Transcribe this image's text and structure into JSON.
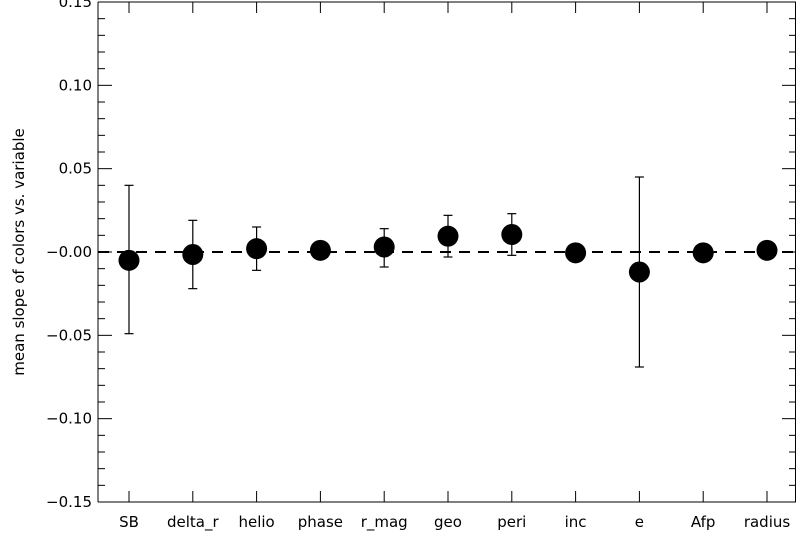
{
  "chart_data": {
    "type": "scatter",
    "title": "",
    "xlabel": "",
    "ylabel": "mean slope of colors vs. variable",
    "categories": [
      "SB",
      "delta_r",
      "helio",
      "phase",
      "r_mag",
      "geo",
      "peri",
      "inc",
      "e",
      "Afp",
      "radius"
    ],
    "ylim": [
      -0.15,
      0.15
    ],
    "yticks": [
      -0.15,
      -0.1,
      -0.05,
      0.0,
      0.05,
      0.1,
      0.15
    ],
    "ytick_labels": [
      "−0.15",
      "−0.10",
      "−0.05",
      "−0.00",
      "0.05",
      "0.10",
      "0.15"
    ],
    "series": [
      {
        "values": [
          -0.005,
          -0.0015,
          0.002,
          0.001,
          0.003,
          0.0095,
          0.0105,
          -0.0005,
          -0.012,
          -0.0005,
          0.001
        ],
        "err_high": [
          0.04,
          0.019,
          0.015,
          null,
          0.014,
          0.022,
          0.023,
          null,
          0.045,
          null,
          null
        ],
        "err_low": [
          -0.049,
          -0.022,
          -0.011,
          null,
          -0.009,
          -0.003,
          -0.002,
          null,
          -0.069,
          null,
          null
        ]
      }
    ],
    "reference_line": {
      "y": 0.0,
      "style": "dashed"
    },
    "grid": false,
    "colors": {
      "marker": "#000000",
      "axis": "#000000",
      "background": "#ffffff"
    }
  }
}
